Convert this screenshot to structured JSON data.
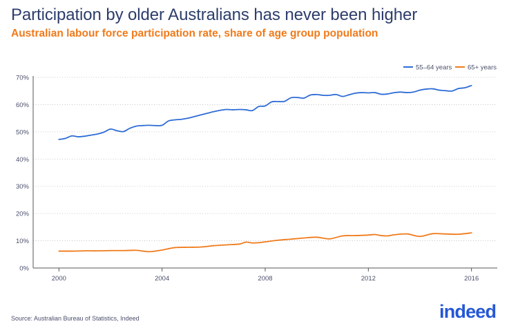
{
  "title": "Participation by older Australians has never been higher",
  "subtitle": "Australian labour force participation rate, share of age group population",
  "source": "Source: Australian Bureau of Statistics, Indeed",
  "brand": "indeed",
  "colors": {
    "series1": "#2d6bd6",
    "series2": "#f07a1a",
    "title": "#2d3d6b",
    "subtitle": "#f07a1a",
    "grid": "#b8b8b8",
    "axis": "#555555",
    "brand": "#2557d6"
  },
  "chart_data": {
    "type": "line",
    "title": "Participation by older Australians has never been higher",
    "subtitle": "Australian labour force participation rate, share of age group population",
    "xlabel": "",
    "ylabel": "",
    "xlim": [
      1999,
      2017
    ],
    "ylim": [
      0,
      70
    ],
    "x_ticks": [
      2000,
      2004,
      2008,
      2012,
      2016
    ],
    "y_ticks": [
      0,
      10,
      20,
      30,
      40,
      50,
      60,
      70
    ],
    "y_tick_labels": [
      "0%",
      "10%",
      "20%",
      "30%",
      "40%",
      "50%",
      "60%",
      "70%"
    ],
    "grid": "horizontal dotted",
    "legend_position": "top-right",
    "series": [
      {
        "name": "55–64 years",
        "x": [
          2000,
          2000.25,
          2000.5,
          2000.75,
          2001,
          2001.25,
          2001.5,
          2001.75,
          2002,
          2002.25,
          2002.5,
          2002.75,
          2003,
          2003.25,
          2003.5,
          2003.75,
          2004,
          2004.25,
          2004.5,
          2004.75,
          2005,
          2005.25,
          2005.5,
          2005.75,
          2006,
          2006.25,
          2006.5,
          2006.75,
          2007,
          2007.25,
          2007.5,
          2007.75,
          2008,
          2008.25,
          2008.5,
          2008.75,
          2009,
          2009.25,
          2009.5,
          2009.75,
          2010,
          2010.25,
          2010.5,
          2010.75,
          2011,
          2011.25,
          2011.5,
          2011.75,
          2012,
          2012.25,
          2012.5,
          2012.75,
          2013,
          2013.25,
          2013.5,
          2013.75,
          2014,
          2014.25,
          2014.5,
          2014.75,
          2015,
          2015.25,
          2015.5,
          2015.75,
          2016
        ],
        "values": [
          47.2,
          47.6,
          48.5,
          48.2,
          48.4,
          48.8,
          49.2,
          49.9,
          51.0,
          50.4,
          50.1,
          51.3,
          52.1,
          52.3,
          52.4,
          52.3,
          52.4,
          54.0,
          54.4,
          54.6,
          55.0,
          55.6,
          56.2,
          56.8,
          57.4,
          57.9,
          58.2,
          58.1,
          58.2,
          58.1,
          57.8,
          59.3,
          59.5,
          61.0,
          61.1,
          61.2,
          62.5,
          62.6,
          62.4,
          63.5,
          63.7,
          63.4,
          63.4,
          63.7,
          63.0,
          63.6,
          64.2,
          64.4,
          64.3,
          64.4,
          63.8,
          63.9,
          64.4,
          64.6,
          64.4,
          64.6,
          65.3,
          65.7,
          65.8,
          65.3,
          65.1,
          65.0,
          65.9,
          66.2,
          67.0
        ]
      },
      {
        "name": "65+ years",
        "x": [
          2000,
          2000.5,
          2001,
          2001.5,
          2002,
          2002.5,
          2003,
          2003.5,
          2004,
          2004.5,
          2005,
          2005.5,
          2006,
          2006.5,
          2007,
          2007.25,
          2007.5,
          2007.75,
          2008,
          2008.5,
          2009,
          2009.5,
          2010,
          2010.5,
          2011,
          2011.5,
          2012,
          2012.25,
          2012.5,
          2012.75,
          2013,
          2013.5,
          2014,
          2014.5,
          2015,
          2015.5,
          2016
        ],
        "values": [
          6.2,
          6.2,
          6.3,
          6.3,
          6.4,
          6.4,
          6.5,
          6.0,
          6.6,
          7.5,
          7.6,
          7.7,
          8.2,
          8.5,
          8.8,
          9.5,
          9.2,
          9.3,
          9.6,
          10.2,
          10.6,
          11.0,
          11.3,
          10.7,
          11.8,
          11.9,
          12.1,
          12.3,
          11.9,
          11.8,
          12.2,
          12.5,
          11.6,
          12.6,
          12.5,
          12.4,
          12.9
        ]
      }
    ]
  }
}
